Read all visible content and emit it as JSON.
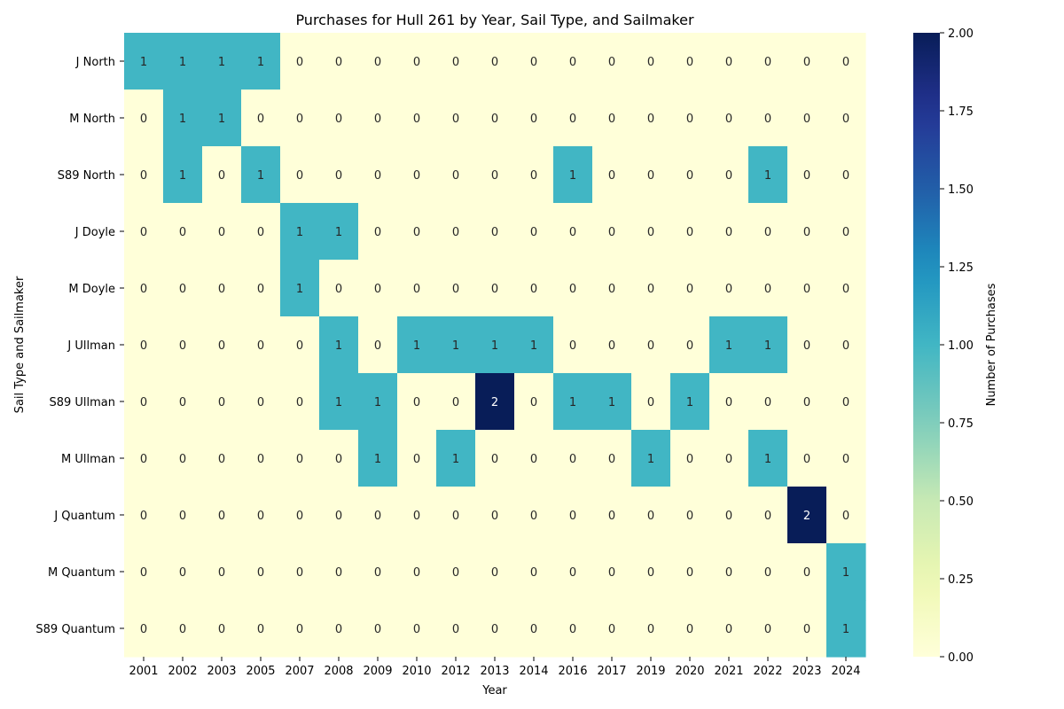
{
  "chart_data": {
    "type": "heatmap",
    "title": "Purchases for Hull 261 by Year, Sail Type, and Sailmaker",
    "xlabel": "Year",
    "ylabel": "Sail Type and Sailmaker",
    "colorbar_label": "Number of Purchases",
    "colormap": "YlGnBu",
    "color_range": [
      0,
      2
    ],
    "colorbar_ticks": [
      "0.00",
      "0.25",
      "0.50",
      "0.75",
      "1.00",
      "1.25",
      "1.50",
      "1.75",
      "2.00"
    ],
    "x": [
      "2001",
      "2002",
      "2003",
      "2005",
      "2007",
      "2008",
      "2009",
      "2010",
      "2012",
      "2013",
      "2014",
      "2016",
      "2017",
      "2019",
      "2020",
      "2021",
      "2022",
      "2023",
      "2024"
    ],
    "y": [
      "J North",
      "M North",
      "S89 North",
      "J Doyle",
      "M Doyle",
      "J Ullman",
      "S89 Ullman",
      "M Ullman",
      "J Quantum",
      "M Quantum",
      "S89 Quantum"
    ],
    "values": [
      [
        1,
        1,
        1,
        1,
        0,
        0,
        0,
        0,
        0,
        0,
        0,
        0,
        0,
        0,
        0,
        0,
        0,
        0,
        0
      ],
      [
        0,
        1,
        1,
        0,
        0,
        0,
        0,
        0,
        0,
        0,
        0,
        0,
        0,
        0,
        0,
        0,
        0,
        0,
        0
      ],
      [
        0,
        1,
        0,
        1,
        0,
        0,
        0,
        0,
        0,
        0,
        0,
        1,
        0,
        0,
        0,
        0,
        1,
        0,
        0
      ],
      [
        0,
        0,
        0,
        0,
        1,
        1,
        0,
        0,
        0,
        0,
        0,
        0,
        0,
        0,
        0,
        0,
        0,
        0,
        0
      ],
      [
        0,
        0,
        0,
        0,
        1,
        0,
        0,
        0,
        0,
        0,
        0,
        0,
        0,
        0,
        0,
        0,
        0,
        0,
        0
      ],
      [
        0,
        0,
        0,
        0,
        0,
        1,
        0,
        1,
        1,
        1,
        1,
        0,
        0,
        0,
        0,
        1,
        1,
        0,
        0
      ],
      [
        0,
        0,
        0,
        0,
        0,
        1,
        1,
        0,
        0,
        2,
        0,
        1,
        1,
        0,
        1,
        0,
        0,
        0,
        0
      ],
      [
        0,
        0,
        0,
        0,
        0,
        0,
        1,
        0,
        1,
        0,
        0,
        0,
        0,
        1,
        0,
        0,
        1,
        0,
        0
      ],
      [
        0,
        0,
        0,
        0,
        0,
        0,
        0,
        0,
        0,
        0,
        0,
        0,
        0,
        0,
        0,
        0,
        0,
        2,
        0
      ],
      [
        0,
        0,
        0,
        0,
        0,
        0,
        0,
        0,
        0,
        0,
        0,
        0,
        0,
        0,
        0,
        0,
        0,
        0,
        1
      ],
      [
        0,
        0,
        0,
        0,
        0,
        0,
        0,
        0,
        0,
        0,
        0,
        0,
        0,
        0,
        0,
        0,
        0,
        0,
        1
      ]
    ]
  }
}
